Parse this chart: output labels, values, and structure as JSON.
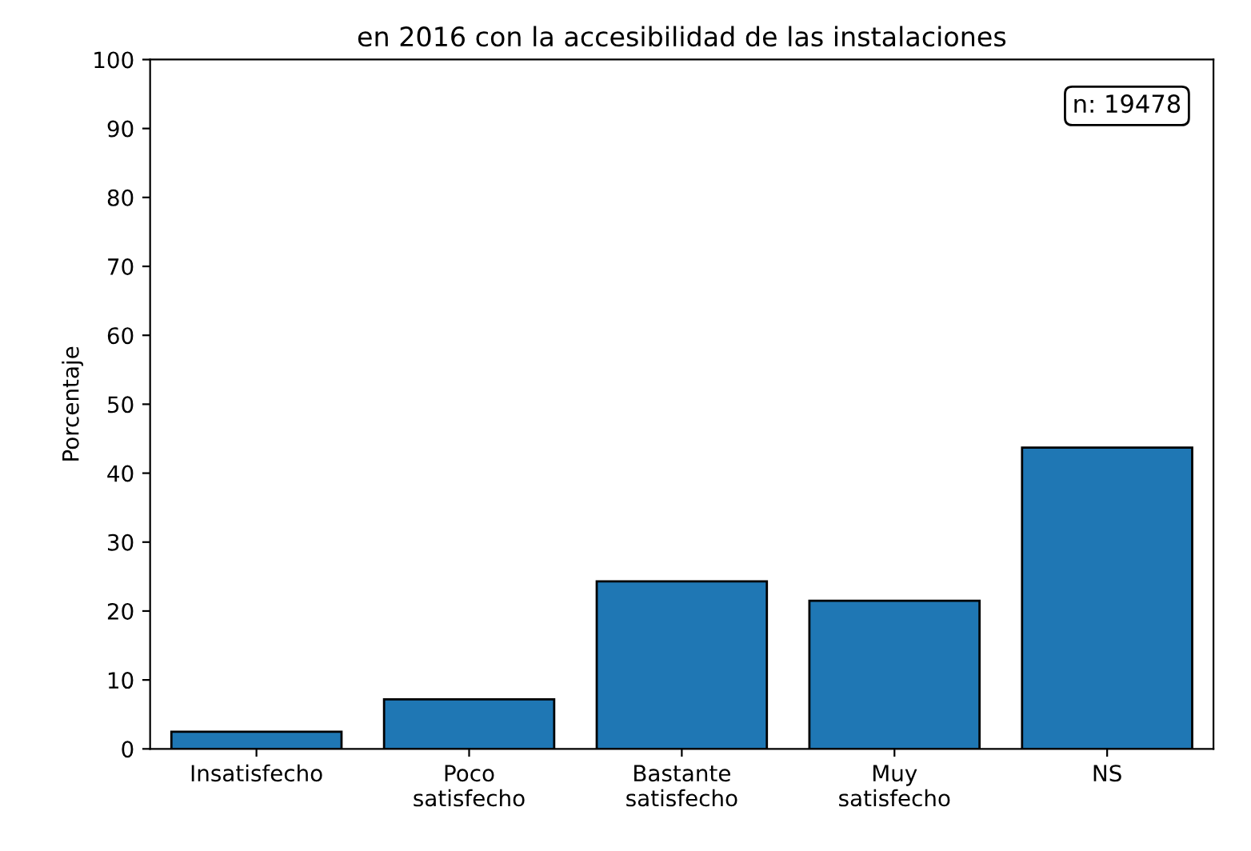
{
  "chart_data": {
    "type": "bar",
    "title": "en 2016 con la accesibilidad de las instalaciones",
    "ylabel": "Porcentaje",
    "categories": [
      "Insatisfecho",
      "Poco\nsatisfecho",
      "Bastante\nsatisfecho",
      "Muy\nsatisfecho",
      "NS"
    ],
    "values": [
      2.5,
      7.2,
      24.3,
      21.5,
      43.7
    ],
    "color": "#1f77b4",
    "ylim": [
      0,
      100
    ],
    "yticks": [
      0,
      10,
      20,
      30,
      40,
      50,
      60,
      70,
      80,
      90,
      100
    ],
    "grid": false,
    "annotations": [
      "n: 19478"
    ]
  }
}
